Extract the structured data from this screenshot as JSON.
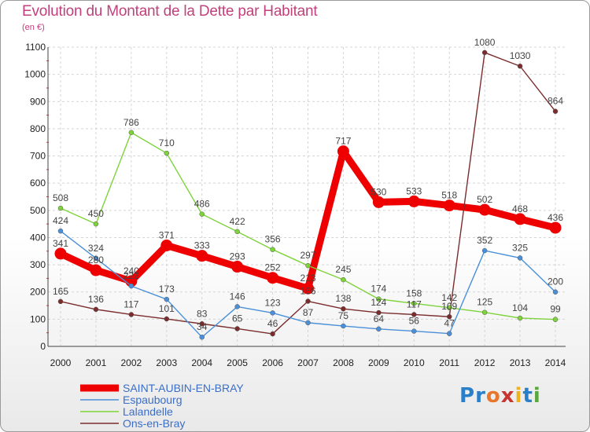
{
  "logo_text": "Proxiti",
  "chart_data": {
    "type": "line",
    "title": "Evolution du Montant de la Dette par Habitant",
    "ylabel": "(en €)",
    "xlabel": "",
    "ylim": [
      0,
      1100
    ],
    "yticks": [
      0,
      100,
      200,
      300,
      400,
      500,
      600,
      700,
      800,
      900,
      1000,
      1100
    ],
    "grid": true,
    "legend_position": "bottom-left",
    "categories": [
      "2000",
      "2001",
      "2002",
      "2003",
      "2004",
      "2005",
      "2006",
      "2007",
      "2008",
      "2009",
      "2010",
      "2011",
      "2012",
      "2013",
      "2014"
    ],
    "series": [
      {
        "name": "SAINT-AUBIN-EN-BRAY",
        "color": "#ee0000",
        "emphasis": true,
        "values": [
          341,
          280,
          240,
          371,
          333,
          293,
          252,
          213,
          717,
          530,
          533,
          518,
          502,
          468,
          436
        ],
        "labels": [
          "341",
          "280",
          "240",
          "371",
          "333",
          "293",
          "252",
          "213",
          "717",
          "530",
          "533",
          "518",
          "502",
          "468",
          "436"
        ]
      },
      {
        "name": "Espaubourg",
        "color": "#4a90d9",
        "emphasis": false,
        "values": [
          424,
          324,
          222,
          173,
          34,
          146,
          123,
          87,
          75,
          64,
          56,
          47,
          352,
          325,
          200
        ],
        "labels": [
          "424",
          "324",
          "222",
          "173",
          "34",
          "146",
          "123",
          "87",
          "75",
          "64",
          "56",
          "47",
          "352",
          "325",
          "200"
        ]
      },
      {
        "name": "Lalandelle",
        "color": "#7ed33a",
        "emphasis": false,
        "values": [
          508,
          450,
          786,
          710,
          486,
          422,
          356,
          297,
          245,
          174,
          158,
          142,
          125,
          104,
          99
        ],
        "labels": [
          "508",
          "450",
          "786",
          "710",
          "486",
          "422",
          "356",
          "297",
          "245",
          "174",
          "158",
          "142",
          "125",
          "104",
          "99"
        ]
      },
      {
        "name": "Ons-en-Bray",
        "color": "#7b2c2c",
        "emphasis": false,
        "values": [
          165,
          136,
          117,
          101,
          83,
          65,
          46,
          166,
          138,
          124,
          117,
          109,
          1080,
          1030,
          864
        ],
        "labels": [
          "165",
          "136",
          "117",
          "101",
          "83",
          "65",
          "46",
          "166",
          "138",
          "124",
          "117",
          "109",
          "1080",
          "1030",
          "864"
        ]
      }
    ]
  }
}
